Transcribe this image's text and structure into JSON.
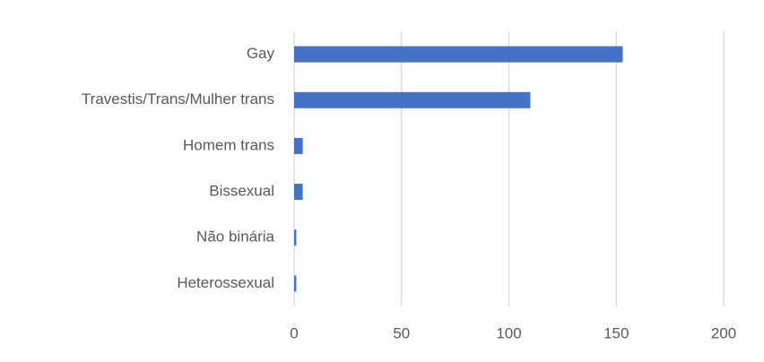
{
  "chart_data": {
    "type": "bar",
    "orientation": "horizontal",
    "categories": [
      "Gay",
      "Travestis/Trans/Mulher trans",
      "Homem trans",
      "Bissexual",
      "Não binária",
      "Heterossexual"
    ],
    "values": [
      153,
      110,
      4,
      4,
      1,
      1
    ],
    "color": "#4472c4",
    "xlim": [
      0,
      200
    ],
    "xticks": [
      0,
      50,
      100,
      150,
      200
    ],
    "grid": true
  }
}
